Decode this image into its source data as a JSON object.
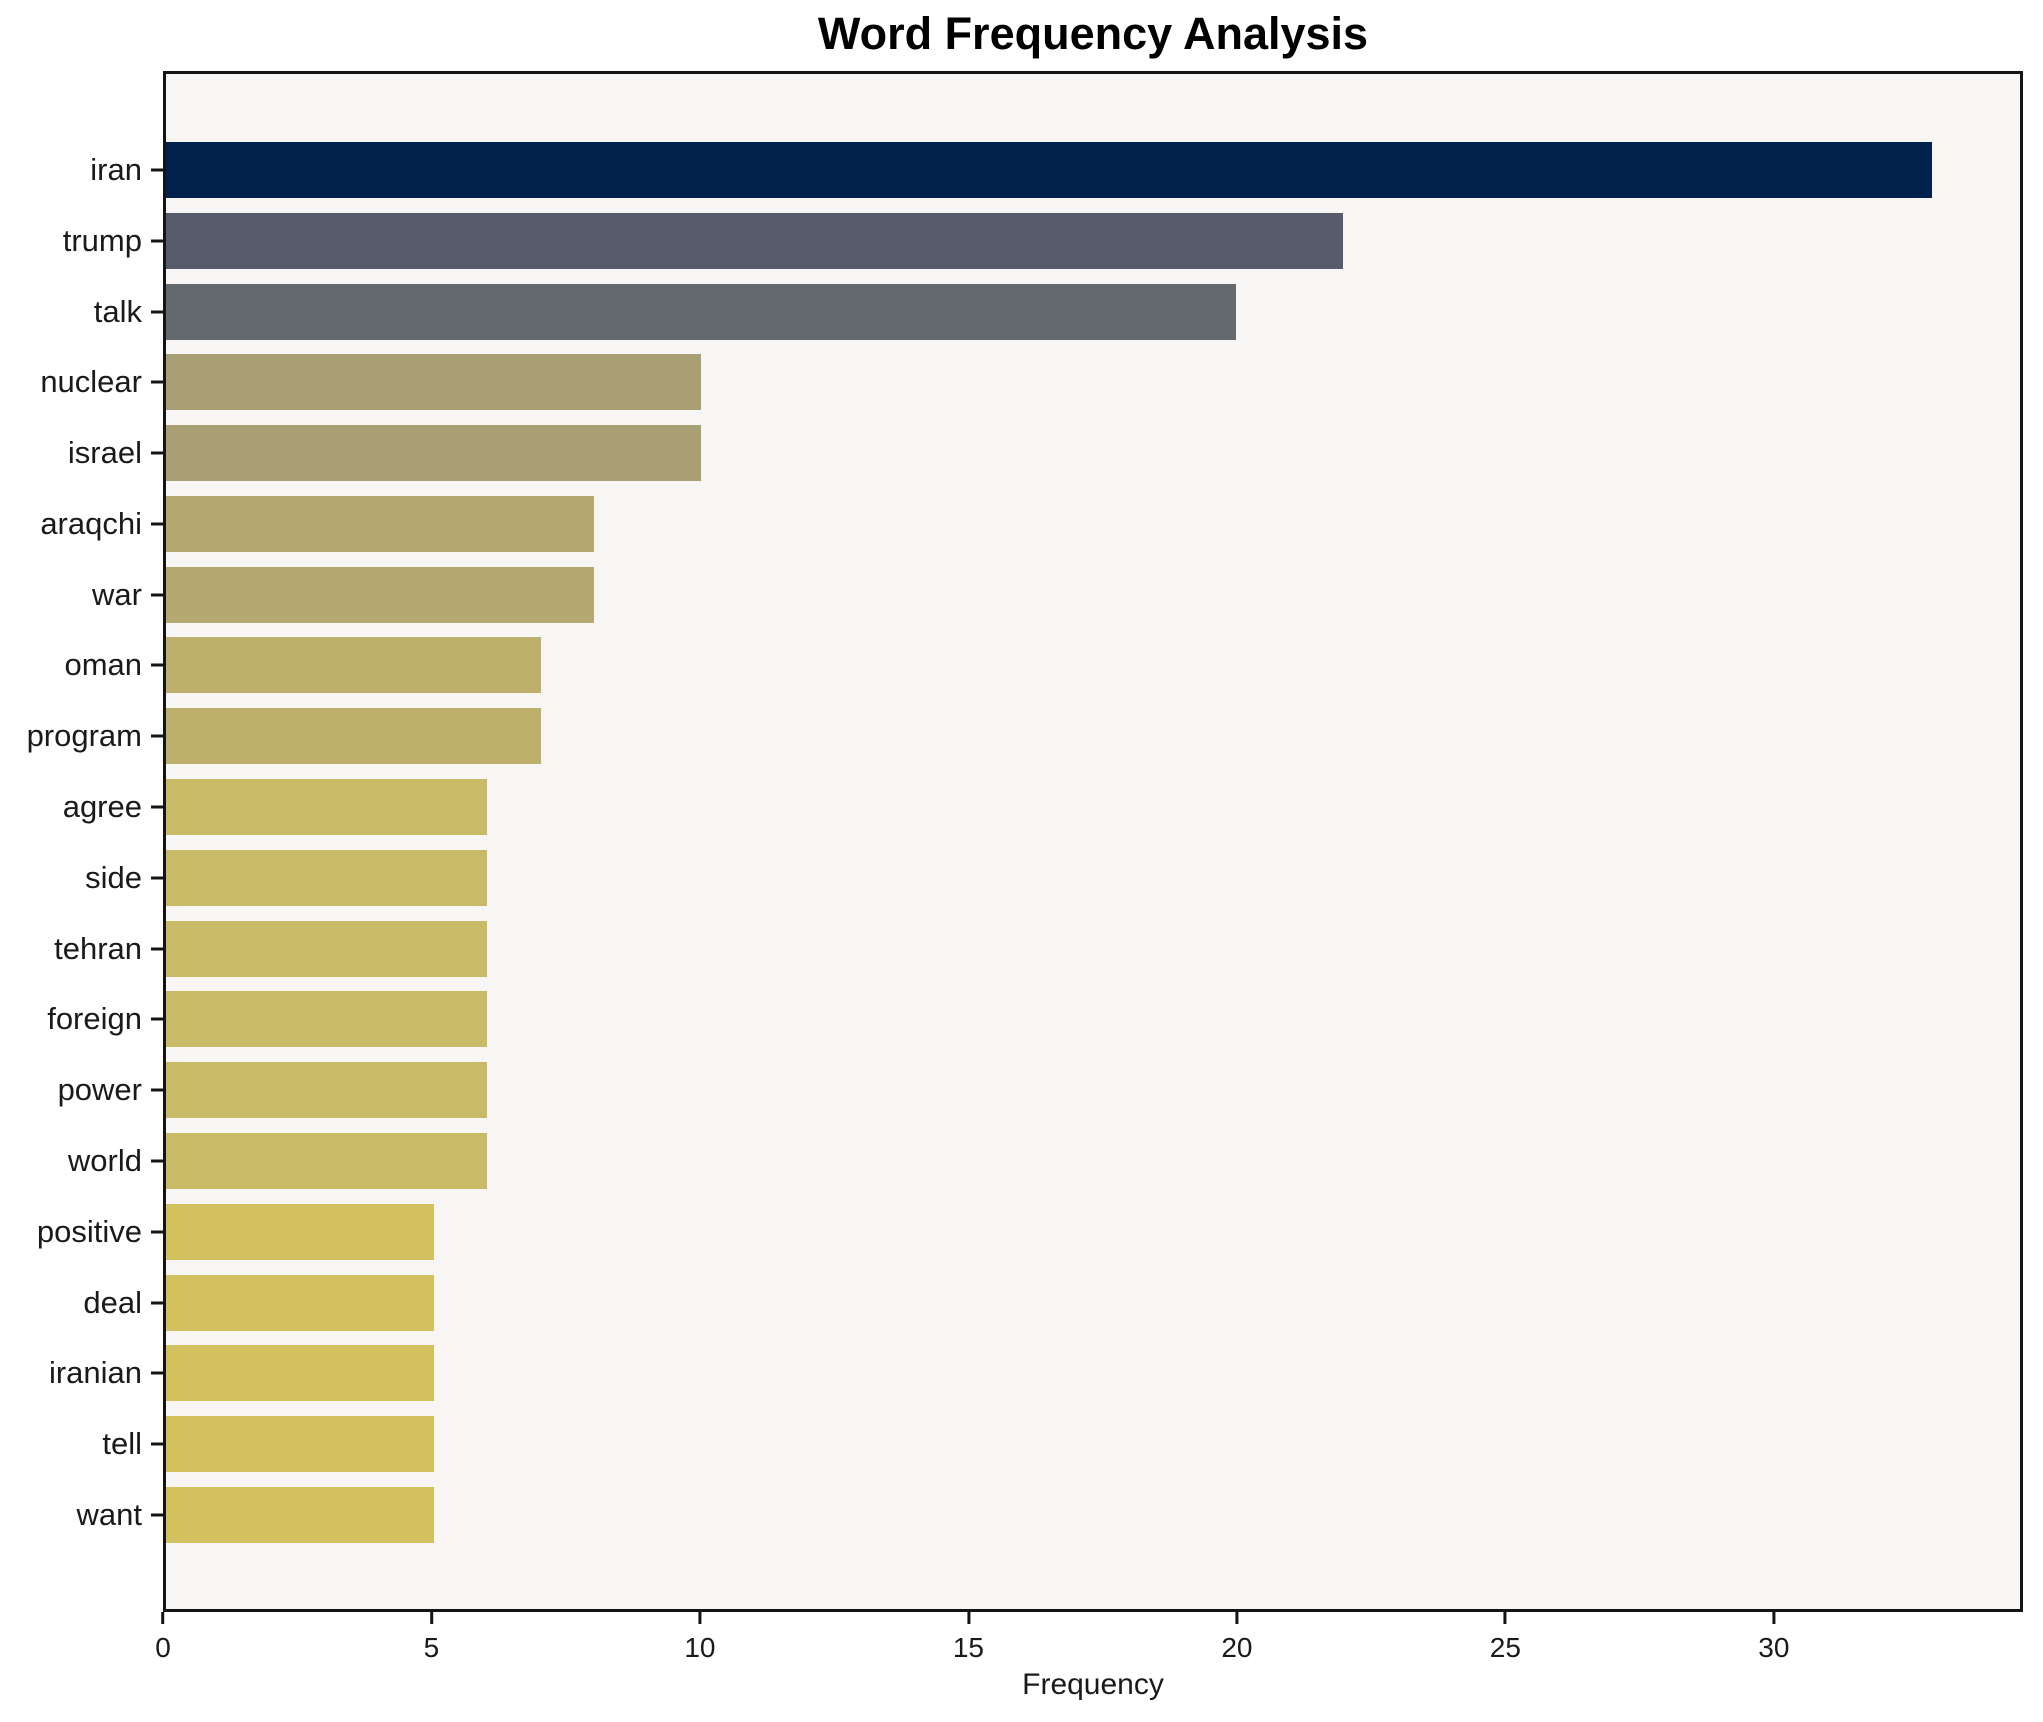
{
  "page": {
    "background": "#ffffff"
  },
  "chart": {
    "title": "Word Frequency Analysis",
    "xlabel": "Frequency",
    "plot_bg": "#f7f6f4",
    "frame_color": "#141414",
    "text_color": "#1a1a1a"
  },
  "chart_data": {
    "type": "bar",
    "orientation": "horizontal",
    "title": "Word Frequency Analysis",
    "xlabel": "Frequency",
    "ylabel": "",
    "categories": [
      "iran",
      "trump",
      "talk",
      "nuclear",
      "israel",
      "araqchi",
      "war",
      "oman",
      "program",
      "agree",
      "side",
      "tehran",
      "foreign",
      "power",
      "world",
      "positive",
      "deal",
      "iranian",
      "tell",
      "want"
    ],
    "values": [
      33,
      22,
      20,
      10,
      10,
      8,
      8,
      7,
      7,
      6,
      6,
      6,
      6,
      6,
      6,
      5,
      5,
      5,
      5,
      5
    ],
    "bar_colors": [
      "#02224e",
      "#565c6b",
      "#64686f",
      "#a8a074",
      "#a8a074",
      "#b4a971",
      "#b4a971",
      "#bdb06d",
      "#bdb06d",
      "#c9ba67",
      "#c9ba67",
      "#c9ba67",
      "#c9ba67",
      "#c9ba67",
      "#c9ba67",
      "#d2c15e",
      "#d2c15e",
      "#d2c15e",
      "#d2c15e",
      "#d2c15e"
    ],
    "xlim": [
      0,
      34.64
    ],
    "xticks": [
      0,
      5,
      10,
      15,
      20,
      25,
      30
    ],
    "grid": false,
    "legend": null
  }
}
